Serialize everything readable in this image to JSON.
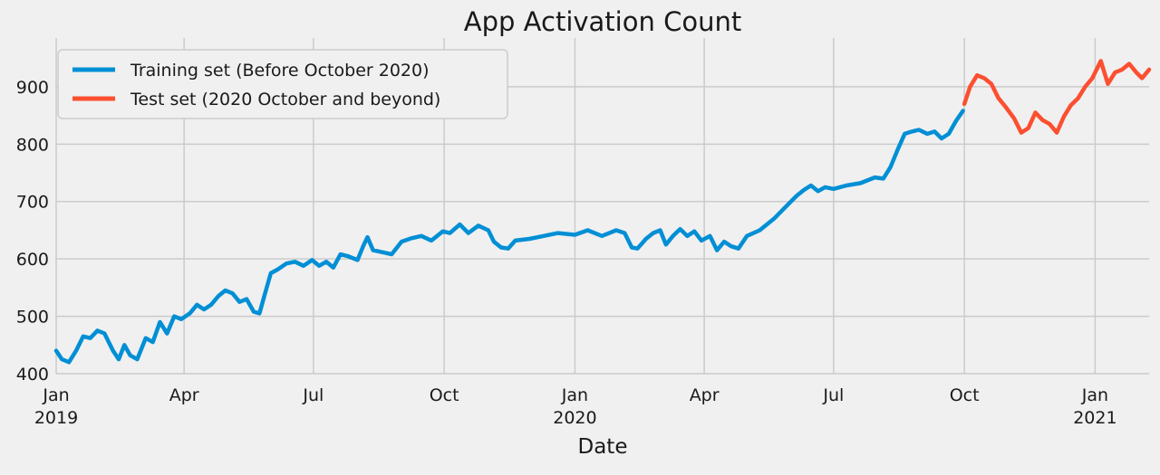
{
  "chart_data": {
    "type": "line",
    "title": "App Activation Count",
    "xlabel": "Date",
    "ylabel": "",
    "ylim": [
      400,
      985
    ],
    "xlim": [
      "2019-01-01",
      "2021-02-08"
    ],
    "grid": true,
    "legend_position": "top-left",
    "y_ticks": [
      400,
      500,
      600,
      700,
      800,
      900
    ],
    "x_ticks": [
      {
        "date": "2019-01-01",
        "label": "Jan",
        "year": "2019"
      },
      {
        "date": "2019-04-01",
        "label": "Apr",
        "year": ""
      },
      {
        "date": "2019-07-01",
        "label": "Jul",
        "year": ""
      },
      {
        "date": "2019-10-01",
        "label": "Oct",
        "year": ""
      },
      {
        "date": "2020-01-01",
        "label": "Jan",
        "year": "2020"
      },
      {
        "date": "2020-04-01",
        "label": "Apr",
        "year": ""
      },
      {
        "date": "2020-07-01",
        "label": "Jul",
        "year": ""
      },
      {
        "date": "2020-10-01",
        "label": "Oct",
        "year": ""
      },
      {
        "date": "2021-01-01",
        "label": "Jan",
        "year": "2021"
      }
    ],
    "series": [
      {
        "name": "Training set (Before October 2020)",
        "color": "#008fd5",
        "points": [
          [
            "2019-01-01",
            440
          ],
          [
            "2019-01-05",
            425
          ],
          [
            "2019-01-10",
            420
          ],
          [
            "2019-01-15",
            440
          ],
          [
            "2019-01-20",
            465
          ],
          [
            "2019-01-25",
            462
          ],
          [
            "2019-01-30",
            475
          ],
          [
            "2019-02-04",
            470
          ],
          [
            "2019-02-10",
            440
          ],
          [
            "2019-02-14",
            425
          ],
          [
            "2019-02-18",
            450
          ],
          [
            "2019-02-22",
            432
          ],
          [
            "2019-02-27",
            425
          ],
          [
            "2019-03-05",
            462
          ],
          [
            "2019-03-10",
            455
          ],
          [
            "2019-03-15",
            490
          ],
          [
            "2019-03-20",
            470
          ],
          [
            "2019-03-25",
            500
          ],
          [
            "2019-03-30",
            495
          ],
          [
            "2019-04-05",
            505
          ],
          [
            "2019-04-10",
            520
          ],
          [
            "2019-04-15",
            512
          ],
          [
            "2019-04-20",
            520
          ],
          [
            "2019-04-25",
            535
          ],
          [
            "2019-04-30",
            545
          ],
          [
            "2019-05-05",
            540
          ],
          [
            "2019-05-10",
            525
          ],
          [
            "2019-05-15",
            530
          ],
          [
            "2019-05-20",
            508
          ],
          [
            "2019-05-24",
            505
          ],
          [
            "2019-05-28",
            540
          ],
          [
            "2019-06-01",
            575
          ],
          [
            "2019-06-06",
            582
          ],
          [
            "2019-06-12",
            592
          ],
          [
            "2019-06-18",
            595
          ],
          [
            "2019-06-24",
            588
          ],
          [
            "2019-06-30",
            598
          ],
          [
            "2019-07-05",
            588
          ],
          [
            "2019-07-10",
            595
          ],
          [
            "2019-07-15",
            585
          ],
          [
            "2019-07-20",
            608
          ],
          [
            "2019-07-25",
            605
          ],
          [
            "2019-08-01",
            598
          ],
          [
            "2019-08-05",
            622
          ],
          [
            "2019-08-08",
            638
          ],
          [
            "2019-08-12",
            615
          ],
          [
            "2019-08-18",
            612
          ],
          [
            "2019-08-25",
            608
          ],
          [
            "2019-09-01",
            630
          ],
          [
            "2019-09-08",
            636
          ],
          [
            "2019-09-15",
            640
          ],
          [
            "2019-09-22",
            632
          ],
          [
            "2019-09-30",
            648
          ],
          [
            "2019-10-05",
            645
          ],
          [
            "2019-10-12",
            660
          ],
          [
            "2019-10-18",
            645
          ],
          [
            "2019-10-25",
            658
          ],
          [
            "2019-11-01",
            650
          ],
          [
            "2019-11-05",
            630
          ],
          [
            "2019-11-10",
            620
          ],
          [
            "2019-11-15",
            618
          ],
          [
            "2019-11-20",
            632
          ],
          [
            "2019-11-30",
            635
          ],
          [
            "2019-12-10",
            640
          ],
          [
            "2019-12-20",
            645
          ],
          [
            "2020-01-01",
            642
          ],
          [
            "2020-01-10",
            650
          ],
          [
            "2020-01-20",
            640
          ],
          [
            "2020-01-30",
            650
          ],
          [
            "2020-02-05",
            645
          ],
          [
            "2020-02-10",
            620
          ],
          [
            "2020-02-14",
            618
          ],
          [
            "2020-02-20",
            635
          ],
          [
            "2020-02-25",
            645
          ],
          [
            "2020-03-01",
            650
          ],
          [
            "2020-03-05",
            625
          ],
          [
            "2020-03-10",
            640
          ],
          [
            "2020-03-15",
            652
          ],
          [
            "2020-03-20",
            640
          ],
          [
            "2020-03-25",
            648
          ],
          [
            "2020-03-30",
            632
          ],
          [
            "2020-04-05",
            640
          ],
          [
            "2020-04-10",
            615
          ],
          [
            "2020-04-15",
            630
          ],
          [
            "2020-04-20",
            622
          ],
          [
            "2020-04-25",
            618
          ],
          [
            "2020-05-01",
            640
          ],
          [
            "2020-05-10",
            650
          ],
          [
            "2020-05-20",
            670
          ],
          [
            "2020-06-01",
            700
          ],
          [
            "2020-06-05",
            710
          ],
          [
            "2020-06-10",
            720
          ],
          [
            "2020-06-15",
            728
          ],
          [
            "2020-06-20",
            718
          ],
          [
            "2020-06-25",
            725
          ],
          [
            "2020-07-01",
            722
          ],
          [
            "2020-07-10",
            728
          ],
          [
            "2020-07-20",
            732
          ],
          [
            "2020-07-30",
            742
          ],
          [
            "2020-08-05",
            740
          ],
          [
            "2020-08-10",
            760
          ],
          [
            "2020-08-15",
            790
          ],
          [
            "2020-08-20",
            818
          ],
          [
            "2020-08-25",
            822
          ],
          [
            "2020-08-30",
            825
          ],
          [
            "2020-09-05",
            818
          ],
          [
            "2020-09-10",
            822
          ],
          [
            "2020-09-15",
            810
          ],
          [
            "2020-09-20",
            818
          ],
          [
            "2020-09-25",
            840
          ],
          [
            "2020-09-30",
            858
          ]
        ]
      },
      {
        "name": "Test set (2020 October and beyond)",
        "color": "#fc4f30",
        "points": [
          [
            "2020-10-01",
            870
          ],
          [
            "2020-10-05",
            900
          ],
          [
            "2020-10-10",
            920
          ],
          [
            "2020-10-15",
            915
          ],
          [
            "2020-10-20",
            905
          ],
          [
            "2020-10-25",
            880
          ],
          [
            "2020-10-30",
            865
          ],
          [
            "2020-11-05",
            845
          ],
          [
            "2020-11-10",
            820
          ],
          [
            "2020-11-15",
            828
          ],
          [
            "2020-11-20",
            855
          ],
          [
            "2020-11-25",
            842
          ],
          [
            "2020-11-30",
            835
          ],
          [
            "2020-12-05",
            820
          ],
          [
            "2020-12-10",
            848
          ],
          [
            "2020-12-15",
            868
          ],
          [
            "2020-12-20",
            880
          ],
          [
            "2020-12-25",
            900
          ],
          [
            "2020-12-30",
            915
          ],
          [
            "2021-01-05",
            945
          ],
          [
            "2021-01-10",
            905
          ],
          [
            "2021-01-15",
            925
          ],
          [
            "2021-01-20",
            930
          ],
          [
            "2021-01-25",
            940
          ],
          [
            "2021-01-30",
            925
          ],
          [
            "2021-02-03",
            915
          ],
          [
            "2021-02-08",
            930
          ]
        ]
      }
    ]
  }
}
